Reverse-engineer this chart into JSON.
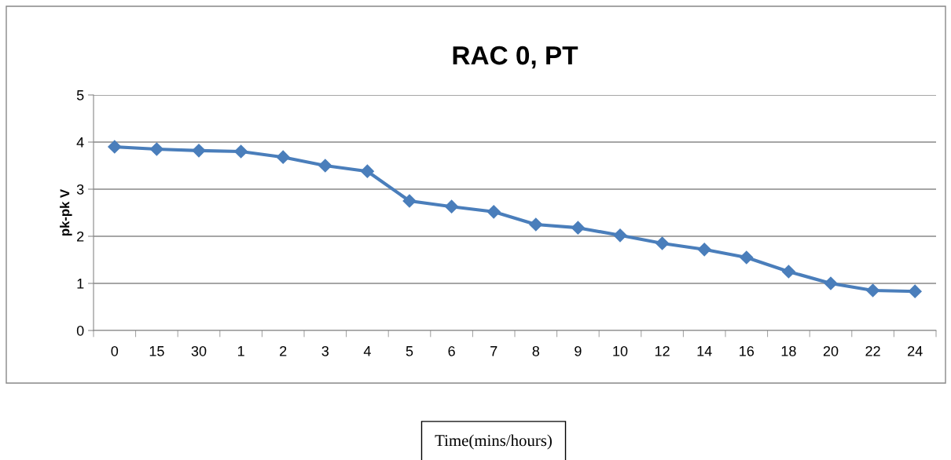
{
  "chart_data": {
    "type": "line",
    "title": "RAC 0, PT",
    "ylabel": "pk-pk V",
    "xlabel": "Time(mins/hours)",
    "categories": [
      "0",
      "15",
      "30",
      "1",
      "2",
      "3",
      "4",
      "5",
      "6",
      "7",
      "8",
      "9",
      "10",
      "12",
      "14",
      "16",
      "18",
      "20",
      "22",
      "24"
    ],
    "series": [
      {
        "color": "#4a7ebb",
        "values": [
          3.9,
          3.85,
          3.82,
          3.8,
          3.68,
          3.5,
          3.38,
          2.75,
          2.63,
          2.52,
          2.25,
          2.18,
          2.02,
          1.85,
          1.72,
          1.55,
          1.25,
          1.0,
          0.85,
          0.83
        ]
      }
    ],
    "ylim": [
      0,
      5
    ],
    "yticks": [
      0,
      1,
      2,
      3,
      4,
      5
    ],
    "grid": "y",
    "marker": "diamond",
    "line_style": "solid",
    "legend": false
  }
}
